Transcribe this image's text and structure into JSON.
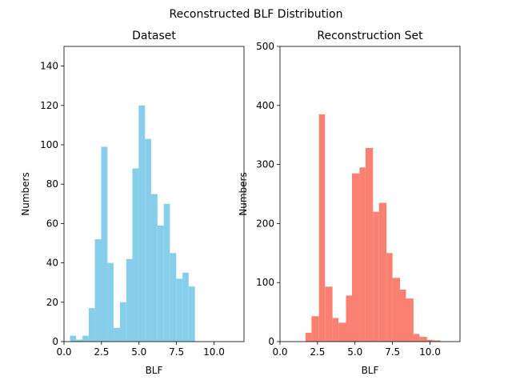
{
  "figure": {
    "suptitle": "Reconstructed BLF Distribution"
  },
  "chart_data": [
    {
      "type": "bar",
      "subtype": "histogram",
      "title": "Dataset",
      "xlabel": "BLF",
      "ylabel": "Numbers",
      "xlim": [
        0.0,
        12.0
      ],
      "ylim": [
        0,
        150
      ],
      "xticks": [
        "0.0",
        "2.5",
        "5.0",
        "7.5",
        "10.0"
      ],
      "yticks": [
        "0",
        "20",
        "40",
        "60",
        "80",
        "100",
        "120",
        "140"
      ],
      "color": "#87CEEB",
      "bins": [
        {
          "x0": 0.4,
          "x1": 0.81,
          "value": 3
        },
        {
          "x0": 0.81,
          "x1": 1.23,
          "value": 1
        },
        {
          "x0": 1.23,
          "x1": 1.65,
          "value": 3
        },
        {
          "x0": 1.65,
          "x1": 2.06,
          "value": 17
        },
        {
          "x0": 2.06,
          "x1": 2.48,
          "value": 52
        },
        {
          "x0": 2.48,
          "x1": 2.9,
          "value": 99
        },
        {
          "x0": 2.9,
          "x1": 3.31,
          "value": 40
        },
        {
          "x0": 3.31,
          "x1": 3.73,
          "value": 7
        },
        {
          "x0": 3.73,
          "x1": 4.15,
          "value": 20
        },
        {
          "x0": 4.15,
          "x1": 4.56,
          "value": 42
        },
        {
          "x0": 4.56,
          "x1": 4.98,
          "value": 88
        },
        {
          "x0": 4.98,
          "x1": 5.4,
          "value": 120
        },
        {
          "x0": 5.4,
          "x1": 5.81,
          "value": 103
        },
        {
          "x0": 5.81,
          "x1": 6.23,
          "value": 75
        },
        {
          "x0": 6.23,
          "x1": 6.65,
          "value": 59
        },
        {
          "x0": 6.65,
          "x1": 7.06,
          "value": 70
        },
        {
          "x0": 7.06,
          "x1": 7.48,
          "value": 45
        },
        {
          "x0": 7.48,
          "x1": 7.9,
          "value": 32
        },
        {
          "x0": 7.9,
          "x1": 8.31,
          "value": 35
        },
        {
          "x0": 8.31,
          "x1": 8.73,
          "value": 28
        }
      ]
    },
    {
      "type": "bar",
      "subtype": "histogram",
      "title": "Reconstruction Set",
      "xlabel": "BLF",
      "ylabel": "Numbers",
      "xlim": [
        0.0,
        12.0
      ],
      "ylim": [
        0,
        500
      ],
      "xticks": [
        "0.0",
        "2.5",
        "5.0",
        "7.5",
        "10.0"
      ],
      "yticks": [
        "0",
        "100",
        "200",
        "300",
        "400",
        "500"
      ],
      "color": "#FA8072",
      "bins": [
        {
          "x0": 1.7,
          "x1": 2.1,
          "value": 15
        },
        {
          "x0": 2.1,
          "x1": 2.6,
          "value": 43
        },
        {
          "x0": 2.6,
          "x1": 3.0,
          "value": 385
        },
        {
          "x0": 3.0,
          "x1": 3.5,
          "value": 93
        },
        {
          "x0": 3.5,
          "x1": 3.9,
          "value": 40
        },
        {
          "x0": 3.9,
          "x1": 4.4,
          "value": 32
        },
        {
          "x0": 4.4,
          "x1": 4.8,
          "value": 78
        },
        {
          "x0": 4.8,
          "x1": 5.3,
          "value": 285
        },
        {
          "x0": 5.3,
          "x1": 5.7,
          "value": 295
        },
        {
          "x0": 5.7,
          "x1": 6.2,
          "value": 328
        },
        {
          "x0": 6.2,
          "x1": 6.6,
          "value": 220
        },
        {
          "x0": 6.6,
          "x1": 7.1,
          "value": 235
        },
        {
          "x0": 7.1,
          "x1": 7.5,
          "value": 150
        },
        {
          "x0": 7.5,
          "x1": 8.0,
          "value": 108
        },
        {
          "x0": 8.0,
          "x1": 8.4,
          "value": 88
        },
        {
          "x0": 8.4,
          "x1": 8.9,
          "value": 73
        },
        {
          "x0": 8.9,
          "x1": 9.3,
          "value": 13
        },
        {
          "x0": 9.3,
          "x1": 9.8,
          "value": 8
        },
        {
          "x0": 9.8,
          "x1": 10.2,
          "value": 3
        },
        {
          "x0": 10.2,
          "x1": 10.7,
          "value": 2
        }
      ]
    }
  ]
}
